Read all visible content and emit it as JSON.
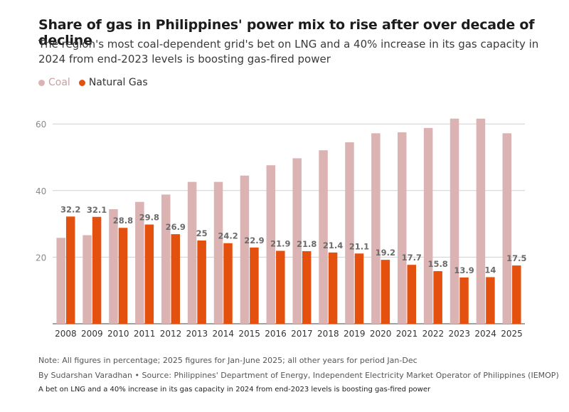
{
  "title": "Share of gas in Philippines' power mix to rise after over decade of decline",
  "subtitle": "The region's most coal-dependent grid's bet on LNG and a 40% increase in its gas capacity in 2024 from end-2023 levels is boosting gas-fired power",
  "legend": {
    "coal": "Coal",
    "gas": "Natural Gas"
  },
  "colors": {
    "coal": "#dcb3b3",
    "gas": "#e4510f",
    "grid": "#d0d0d0",
    "tick_text": "#8a8a8a",
    "label_text": "#6b6b6b"
  },
  "notes": {
    "note": "Note: All figures in percentage; 2025 figures for Jan-June 2025; all other years for period Jan-Dec",
    "byline": "By Sudarshan Varadhan • Source: Philippines' Department of Energy, Independent Electricity Market Operator of Philippines (IEMOP)",
    "caption": "A bet on LNG and a 40% increase in its gas capacity in 2024 from end-2023 levels is boosting gas-fired power"
  },
  "chart_data": {
    "type": "bar",
    "title": "Share of gas in Philippines' power mix to rise after over decade of decline",
    "xlabel": "",
    "ylabel": "",
    "ylim": [
      0,
      60
    ],
    "yticks": [
      20,
      40,
      60
    ],
    "grid": true,
    "legend_position": "top-left",
    "categories": [
      "2008",
      "2009",
      "2010",
      "2011",
      "2012",
      "2013",
      "2014",
      "2015",
      "2016",
      "2017",
      "2018",
      "2019",
      "2020",
      "2021",
      "2022",
      "2023",
      "2024",
      "2025"
    ],
    "series": [
      {
        "name": "Coal",
        "values": [
          25.8,
          26.6,
          34.4,
          36.6,
          38.8,
          42.6,
          42.6,
          44.5,
          47.6,
          49.7,
          52.1,
          54.5,
          57.2,
          57.5,
          58.8,
          61.6,
          61.6,
          57.2
        ],
        "labeled": false
      },
      {
        "name": "Natural Gas",
        "values": [
          32.2,
          32.1,
          28.8,
          29.8,
          26.9,
          25,
          24.2,
          22.9,
          21.9,
          21.8,
          21.4,
          21.1,
          19.2,
          17.7,
          15.8,
          13.9,
          14,
          17.5
        ],
        "labels": [
          "32.2",
          "32.1",
          "28.8",
          "29.8",
          "26.9",
          "25",
          "24.2",
          "22.9",
          "21.9",
          "21.8",
          "21.4",
          "21.1",
          "19.2",
          "17.7",
          "15.8",
          "13.9",
          "14",
          "17.5"
        ],
        "labeled": true
      }
    ]
  }
}
